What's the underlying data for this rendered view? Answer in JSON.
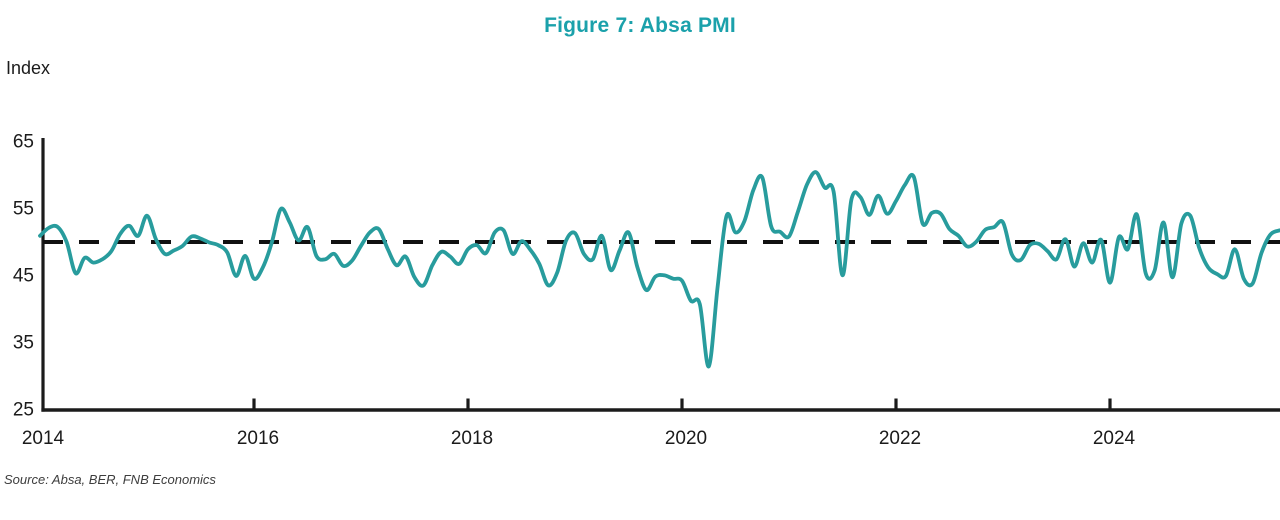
{
  "page": {
    "title": "Figure 7: Absa PMI",
    "y_axis_title": "Index",
    "source_note": "Source: Absa, BER, FNB Economics"
  },
  "colors": {
    "title": "#1ba1ab",
    "line": "#289c9d",
    "axis": "#1b1b1b",
    "reference_line": "#111111",
    "source_text": "#3d3d3d",
    "background": "#ffffff"
  },
  "chart_data": {
    "type": "line",
    "title": "Figure 7: Absa PMI",
    "ylabel": "Index",
    "xlabel": "",
    "ylim": [
      25,
      65
    ],
    "y_ticks": [
      65,
      55,
      45,
      35,
      25
    ],
    "x_ticks": [
      "2014",
      "2016",
      "2018",
      "2020",
      "2022",
      "2024"
    ],
    "grid": false,
    "legend_position": "none",
    "reference_line_y": 50,
    "frequency": "monthly",
    "start_month": "2014-01",
    "end_month": "2025-08",
    "series": [
      {
        "name": "Absa PMI",
        "color": "#289c9d",
        "values": [
          51.0,
          52.2,
          52.3,
          50.0,
          45.4,
          47.7,
          47.0,
          47.5,
          48.7,
          51.3,
          52.5,
          51.0,
          54.0,
          50.5,
          48.3,
          48.8,
          49.5,
          50.9,
          50.6,
          50.0,
          49.6,
          48.5,
          45.0,
          48.0,
          44.6,
          46.3,
          50.0,
          55.0,
          53.0,
          50.3,
          52.3,
          48.0,
          47.5,
          48.3,
          46.5,
          47.3,
          49.5,
          51.5,
          52.0,
          49.0,
          46.6,
          47.9,
          44.8,
          43.6,
          46.6,
          48.6,
          47.9,
          46.8,
          49.0,
          49.6,
          48.4,
          51.5,
          51.8,
          48.3,
          50.2,
          48.9,
          46.8,
          43.6,
          45.5,
          50.3,
          51.4,
          48.3,
          47.5,
          51.0,
          45.9,
          48.8,
          51.5,
          46.3,
          42.9,
          44.9,
          45.1,
          44.6,
          44.3,
          41.3,
          40.8,
          31.5,
          43.5,
          54.0,
          51.5,
          53.2,
          57.8,
          59.7,
          52.4,
          51.6,
          50.9,
          54.6,
          58.6,
          60.5,
          58.2,
          57.6,
          45.1,
          56.4,
          56.8,
          54.1,
          57.0,
          54.3,
          56.2,
          58.6,
          59.8,
          52.8,
          54.4,
          54.3,
          52.0,
          51.0,
          49.4,
          50.1,
          51.9,
          52.3,
          53.0,
          48.2,
          47.4,
          49.6,
          49.8,
          48.7,
          47.5,
          50.5,
          46.4,
          49.9,
          47.0,
          50.4,
          44.0,
          50.8,
          49.0,
          54.2,
          45.4,
          45.8,
          53.0,
          44.8,
          52.8,
          54.0,
          49.2,
          46.3,
          45.3,
          45.0,
          49.0,
          44.6,
          43.9,
          48.5,
          51.2,
          51.8
        ]
      }
    ]
  }
}
